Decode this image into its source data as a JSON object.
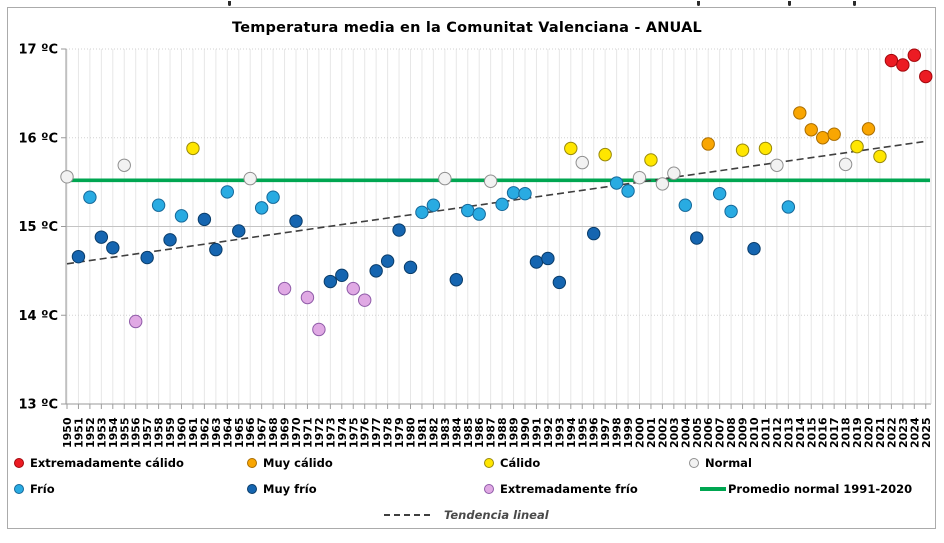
{
  "chart_data": {
    "type": "scatter",
    "title": "Temperatura media en la Comunitat Valenciana - ANUAL",
    "xlabel": "",
    "ylabel": "",
    "ylim": [
      13,
      17
    ],
    "grid": "both",
    "yticks": [
      {
        "value": 17,
        "label": "17 ºC"
      },
      {
        "value": 16,
        "label": "16 ºC"
      },
      {
        "value": 15,
        "label": "15 ºC"
      },
      {
        "value": 14,
        "label": "14 ºC"
      },
      {
        "value": 13,
        "label": "13 ºC"
      }
    ],
    "x_years": [
      1950,
      1951,
      1952,
      1953,
      1954,
      1955,
      1956,
      1957,
      1958,
      1959,
      1960,
      1961,
      1962,
      1963,
      1964,
      1965,
      1966,
      1967,
      1968,
      1969,
      1970,
      1971,
      1972,
      1973,
      1974,
      1975,
      1976,
      1977,
      1978,
      1979,
      1980,
      1981,
      1982,
      1983,
      1984,
      1985,
      1986,
      1987,
      1988,
      1989,
      1990,
      1991,
      1992,
      1993,
      1994,
      1995,
      1996,
      1997,
      1998,
      1999,
      2000,
      2001,
      2002,
      2003,
      2004,
      2005,
      2006,
      2007,
      2008,
      2009,
      2010,
      2011,
      2012,
      2013,
      2014,
      2015,
      2016,
      2017,
      2018,
      2019,
      2020,
      2021,
      2022,
      2023,
      2024,
      2025
    ],
    "values": [
      15.56,
      14.66,
      15.33,
      14.88,
      14.76,
      15.69,
      13.93,
      14.65,
      15.24,
      14.85,
      15.12,
      15.88,
      15.08,
      14.74,
      15.39,
      14.95,
      15.54,
      15.21,
      15.33,
      14.3,
      15.06,
      14.2,
      13.84,
      14.38,
      14.45,
      14.3,
      14.17,
      14.5,
      14.61,
      14.96,
      14.54,
      15.16,
      15.24,
      15.54,
      14.4,
      15.18,
      15.14,
      15.51,
      15.25,
      15.38,
      15.37,
      14.6,
      14.64,
      14.37,
      15.88,
      15.72,
      14.92,
      15.81,
      15.49,
      15.4,
      15.55,
      15.75,
      15.48,
      15.6,
      15.24,
      14.87,
      15.93,
      15.37,
      15.17,
      15.86,
      14.75,
      15.88,
      15.69,
      15.22,
      16.28,
      16.09,
      16.0,
      16.04,
      15.7,
      15.9,
      16.1,
      15.79,
      16.87,
      16.82,
      16.93,
      16.69
    ],
    "category_by_year": [
      "normal",
      "muy_frio",
      "frio",
      "muy_frio",
      "muy_frio",
      "normal",
      "ext_frio",
      "muy_frio",
      "frio",
      "muy_frio",
      "frio",
      "calido",
      "muy_frio",
      "muy_frio",
      "frio",
      "muy_frio",
      "normal",
      "frio",
      "frio",
      "ext_frio",
      "muy_frio",
      "ext_frio",
      "ext_frio",
      "muy_frio",
      "muy_frio",
      "ext_frio",
      "ext_frio",
      "muy_frio",
      "muy_frio",
      "muy_frio",
      "muy_frio",
      "frio",
      "frio",
      "normal",
      "muy_frio",
      "frio",
      "frio",
      "normal",
      "frio",
      "frio",
      "frio",
      "muy_frio",
      "muy_frio",
      "muy_frio",
      "calido",
      "normal",
      "muy_frio",
      "calido",
      "frio",
      "frio",
      "normal",
      "calido",
      "normal",
      "normal",
      "frio",
      "muy_frio",
      "muy_calido",
      "frio",
      "frio",
      "calido",
      "muy_frio",
      "calido",
      "normal",
      "frio",
      "muy_calido",
      "muy_calido",
      "muy_calido",
      "muy_calido",
      "normal",
      "calido",
      "muy_calido",
      "calido",
      "ext_calido",
      "ext_calido",
      "ext_calido",
      "ext_calido"
    ],
    "categories": {
      "ext_calido": {
        "label": "Extremadamente cálido",
        "fill": "#EC1B23",
        "stroke": "#A3070C"
      },
      "muy_calido": {
        "label": "Muy cálido",
        "fill": "#F9A602",
        "stroke": "#AA6D00"
      },
      "calido": {
        "label": "Cálido",
        "fill": "#FFE600",
        "stroke": "#99890A"
      },
      "normal": {
        "label": "Normal",
        "fill": "#F2F2F2",
        "stroke": "#8F8F8F"
      },
      "frio": {
        "label": "Frío",
        "fill": "#29ABE2",
        "stroke": "#156899"
      },
      "muy_frio": {
        "label": "Muy frío",
        "fill": "#1565B0",
        "stroke": "#0A3C69"
      },
      "ext_frio": {
        "label": "Extremadamente frío",
        "fill": "#E0A9E4",
        "stroke": "#8F5BA8"
      }
    },
    "reference_line": {
      "label": "Promedio normal 1991-2020",
      "value": 15.52,
      "color": "#00A651"
    },
    "trend_line": {
      "label": "Tendencia lineal",
      "start_value": 14.58,
      "end_value": 15.96,
      "style": "dashed",
      "color": "#3F3F3F"
    },
    "legend_position": "bottom"
  }
}
